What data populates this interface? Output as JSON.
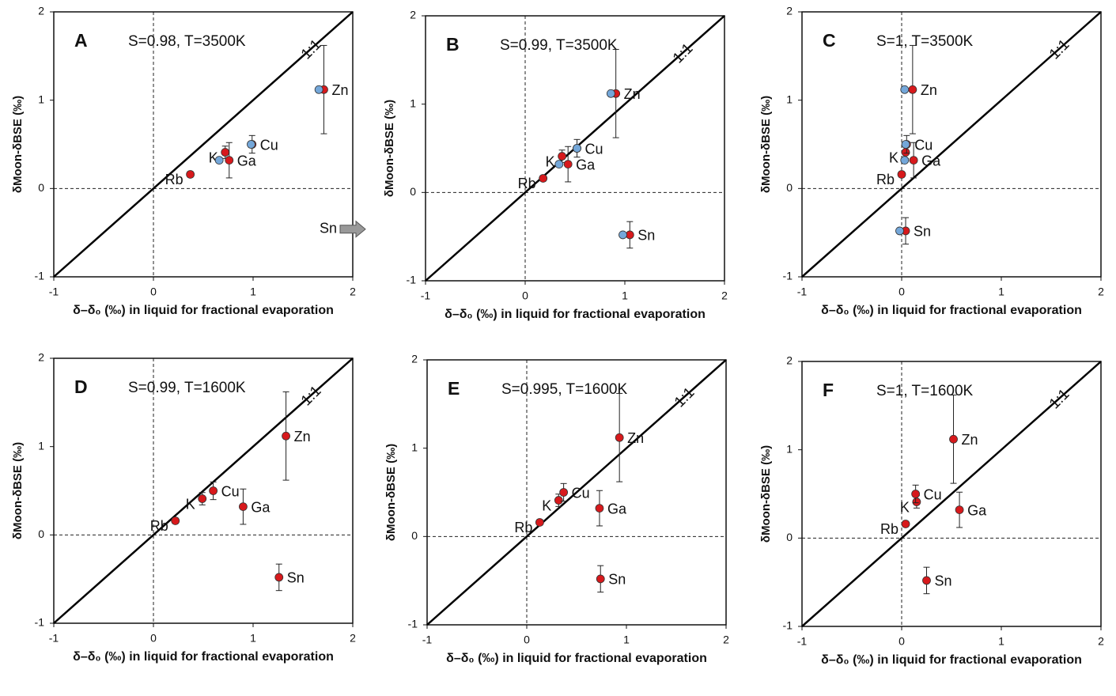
{
  "chart_data": [
    {
      "type": "scatter",
      "panel": "A",
      "annotation": "S=0.98, T=3500K",
      "ref_label": "1:1",
      "offscale_label": "Sn",
      "xlabel": "δ–δ₀ (‰) in liquid for fractional evaporation",
      "ylabel": "δMoon-δBSE (‰)",
      "xlim": [
        -1,
        2
      ],
      "ylim": [
        -1,
        2
      ],
      "xticks": [
        -1,
        0,
        1,
        2
      ],
      "yticks": [
        -1,
        0,
        1,
        2
      ],
      "series": [
        {
          "color": "#d7191c",
          "point_labels": [
            "Rb",
            "K",
            "Ga",
            "Cu",
            "Zn"
          ],
          "x": [
            0.37,
            0.72,
            0.76,
            0.99,
            1.71
          ],
          "values": [
            0.16,
            0.41,
            0.32,
            0.5,
            1.12
          ],
          "errors": [
            0.03,
            0.07,
            0.2,
            0.1,
            0.5
          ]
        },
        {
          "color": "#74a7d9",
          "x": [
            0.66,
            0.98,
            1.66
          ],
          "values": [
            0.32,
            0.5,
            1.12
          ]
        }
      ]
    },
    {
      "type": "scatter",
      "panel": "B",
      "annotation": "S=0.99, T=3500K",
      "ref_label": "1:1",
      "xlabel": "δ–δ₀ (‰) in liquid for fractional evaporation",
      "ylabel": "δMoon-δBSE (‰)",
      "xlim": [
        -1,
        2
      ],
      "ylim": [
        -1,
        2
      ],
      "xticks": [
        -1,
        0,
        1,
        2
      ],
      "yticks": [
        -1,
        0,
        1,
        2
      ],
      "series": [
        {
          "color": "#d7191c",
          "point_labels": [
            "Rb",
            "K",
            "Ga",
            "Cu",
            "Zn",
            "Sn"
          ],
          "x": [
            0.18,
            0.37,
            0.43,
            0.52,
            0.91,
            1.05
          ],
          "values": [
            0.16,
            0.41,
            0.32,
            0.5,
            1.12,
            -0.48
          ],
          "errors": [
            0.03,
            0.07,
            0.2,
            0.1,
            0.5,
            0.15
          ]
        },
        {
          "color": "#74a7d9",
          "x": [
            0.34,
            0.52,
            0.86,
            0.98
          ],
          "values": [
            0.32,
            0.5,
            1.12,
            -0.48
          ]
        }
      ]
    },
    {
      "type": "scatter",
      "panel": "C",
      "annotation": "S=1, T=3500K",
      "ref_label": "1:1",
      "xlabel": "δ–δ₀ (‰) in liquid for fractional evaporation",
      "ylabel": "δMoon-δBSE (‰)",
      "xlim": [
        -1,
        2
      ],
      "ylim": [
        -1,
        2
      ],
      "xticks": [
        -1,
        0,
        1,
        2
      ],
      "yticks": [
        -1,
        0,
        1,
        2
      ],
      "series": [
        {
          "color": "#d7191c",
          "point_labels": [
            "Rb",
            "K",
            "Ga",
            "Cu",
            "Zn",
            "Sn"
          ],
          "x": [
            0.0,
            0.04,
            0.12,
            0.05,
            0.11,
            0.04
          ],
          "values": [
            0.16,
            0.41,
            0.32,
            0.5,
            1.12,
            -0.48
          ],
          "errors": [
            0.03,
            0.07,
            0.2,
            0.1,
            0.5,
            0.15
          ]
        },
        {
          "color": "#74a7d9",
          "x": [
            0.03,
            0.04,
            0.03,
            -0.02
          ],
          "values": [
            0.32,
            0.5,
            1.12,
            -0.48
          ]
        }
      ]
    },
    {
      "type": "scatter",
      "panel": "D",
      "annotation": "S=0.99, T=1600K",
      "ref_label": "1:1",
      "xlabel": "δ–δ₀ (‰) in liquid for fractional evaporation",
      "ylabel": "δMoon-δBSE (‰)",
      "xlim": [
        -1,
        2
      ],
      "ylim": [
        -1,
        2
      ],
      "xticks": [
        -1,
        0,
        1,
        2
      ],
      "yticks": [
        -1,
        0,
        1,
        2
      ],
      "series": [
        {
          "color": "#d7191c",
          "point_labels": [
            "Rb",
            "K",
            "Cu",
            "Ga",
            "Zn",
            "Sn"
          ],
          "x": [
            0.22,
            0.49,
            0.6,
            0.9,
            1.33,
            1.26
          ],
          "values": [
            0.16,
            0.41,
            0.5,
            0.32,
            1.12,
            -0.48
          ],
          "errors": [
            0.03,
            0.07,
            0.1,
            0.2,
            0.5,
            0.15
          ]
        }
      ]
    },
    {
      "type": "scatter",
      "panel": "E",
      "annotation": "S=0.995, T=1600K",
      "ref_label": "1:1",
      "xlabel": "δ–δ₀ (‰) in liquid for fractional evaporation",
      "ylabel": "δMoon-δBSE (‰)",
      "xlim": [
        -1,
        2
      ],
      "ylim": [
        -1,
        2
      ],
      "xticks": [
        -1,
        0,
        1,
        2
      ],
      "yticks": [
        -1,
        0,
        1,
        2
      ],
      "series": [
        {
          "color": "#d7191c",
          "point_labels": [
            "Rb",
            "K",
            "Cu",
            "Ga",
            "Zn",
            "Sn"
          ],
          "x": [
            0.13,
            0.32,
            0.37,
            0.73,
            0.93,
            0.74
          ],
          "values": [
            0.16,
            0.41,
            0.5,
            0.32,
            1.12,
            -0.48
          ],
          "errors": [
            0.03,
            0.07,
            0.1,
            0.2,
            0.5,
            0.15
          ]
        }
      ]
    },
    {
      "type": "scatter",
      "panel": "F",
      "annotation": "S=1, T=1600K",
      "ref_label": "1:1",
      "xlabel": "δ–δ₀ (‰) in liquid for fractional evaporation",
      "ylabel": "δMoon-δBSE (‰)",
      "xlim": [
        -1,
        2
      ],
      "ylim": [
        -1,
        2
      ],
      "xticks": [
        -1,
        0,
        1,
        2
      ],
      "yticks": [
        -1,
        0,
        1,
        2
      ],
      "series": [
        {
          "color": "#d7191c",
          "point_labels": [
            "Rb",
            "K",
            "Cu",
            "Ga",
            "Zn",
            "Sn"
          ],
          "x": [
            0.04,
            0.15,
            0.14,
            0.58,
            0.52,
            0.25
          ],
          "values": [
            0.16,
            0.41,
            0.5,
            0.32,
            1.12,
            -0.48
          ],
          "errors": [
            0.03,
            0.07,
            0.1,
            0.2,
            0.5,
            0.15
          ]
        }
      ]
    }
  ]
}
